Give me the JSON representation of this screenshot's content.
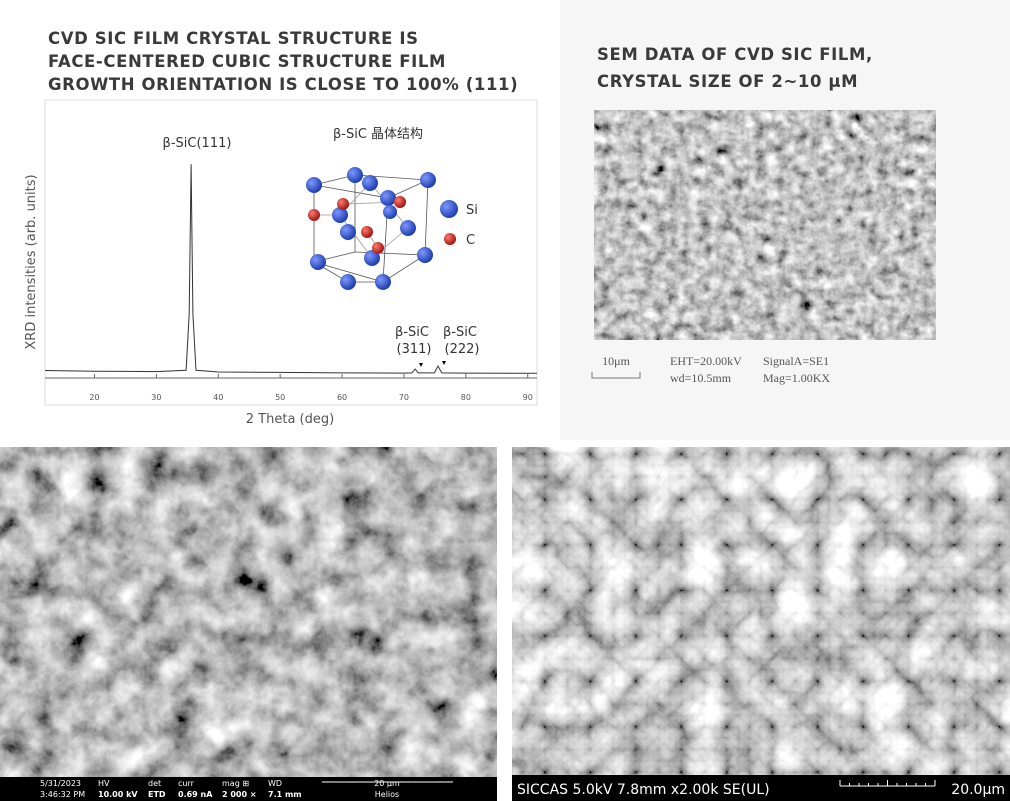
{
  "header": {
    "title_lines": [
      "CVD SIC FILM CRYSTAL STRUCTURE IS",
      "FACE-CENTERED CUBIC STRUCTURE FILM",
      "GROWTH ORIENTATION IS CLOSE TO 100% (111)"
    ]
  },
  "chart_data": {
    "type": "line",
    "x_label": "2 Theta (deg)",
    "y_label": "XRD intensities (arb. units)",
    "x": [
      12,
      20,
      30,
      34.8,
      35.3,
      35.6,
      35.9,
      36.4,
      40,
      50,
      60,
      70,
      71.3,
      71.8,
      72.3,
      74.9,
      75.5,
      76.1,
      80,
      91.5
    ],
    "values": [
      3.5,
      3.2,
      3.0,
      3.6,
      30,
      100,
      30,
      3.6,
      2.8,
      2.6,
      2.4,
      2.3,
      2.4,
      4.2,
      2.4,
      2.4,
      5.6,
      2.4,
      2.3,
      2.2
    ],
    "color": "#333333",
    "xlim": [
      12,
      91.5
    ],
    "ylim": [
      0,
      130
    ],
    "xticks": [
      20,
      30,
      40,
      50,
      60,
      70,
      80,
      90
    ],
    "annotations": [
      "β-SiC(111)",
      "β-SiC",
      "(311)",
      "β-SiC",
      "(222)"
    ]
  },
  "crystal_structure": {
    "title": "β-SiC 晶体结构",
    "legend": [
      "Si",
      "C"
    ]
  },
  "sem_panel": {
    "title_lines": [
      "SEM DATA OF CVD SIC FILM,",
      "CRYSTAL SIZE OF 2~10 μM"
    ],
    "scale_label": "10μm",
    "info": [
      "EHT=20.00kV",
      "SignalA=SE1",
      "wd=10.5mm",
      "Mag=1.00KX"
    ]
  },
  "sem_left": {
    "bar": [
      [
        "5/31/2023",
        "3:46:32 PM"
      ],
      [
        "HV",
        "10.00 kV"
      ],
      [
        "det",
        "ETD"
      ],
      [
        "curr",
        "0.69 nA"
      ],
      [
        "mag ⊞",
        "2 000 ×"
      ],
      [
        "WD",
        "7.1 mm"
      ],
      [
        "20 µm",
        "Helios"
      ]
    ]
  },
  "sem_right": {
    "bar_text": "SICCAS 5.0kV 7.8mm x2.00k SE(UL)",
    "scale_label": "20.0µm"
  }
}
